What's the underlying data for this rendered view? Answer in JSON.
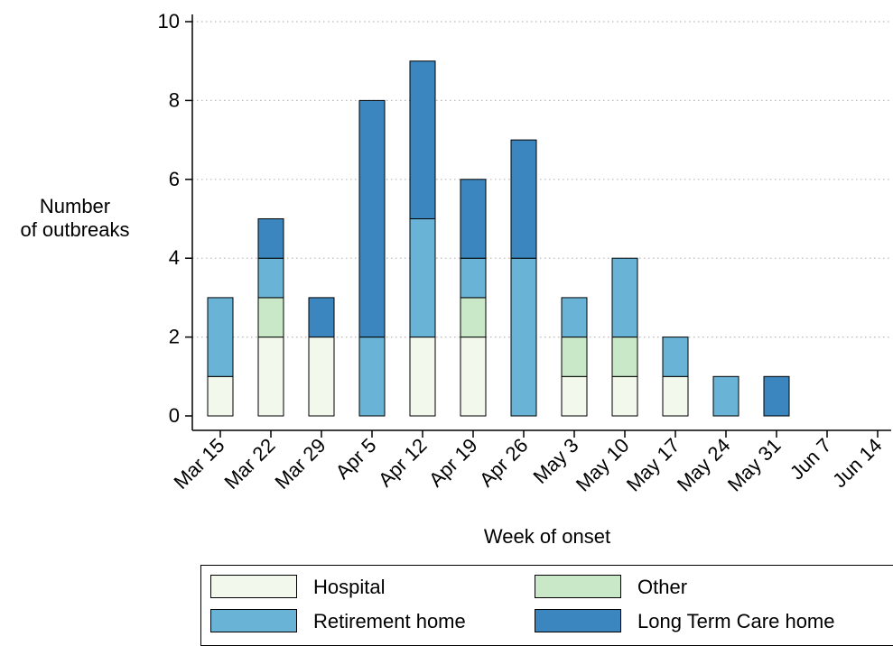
{
  "chart_data": {
    "type": "bar",
    "stacked": true,
    "title": "",
    "xlabel": "Week of onset",
    "ylabel_lines": [
      "Number",
      "of outbreaks"
    ],
    "ylim": [
      0,
      10
    ],
    "yticks": [
      0,
      2,
      4,
      6,
      8,
      10
    ],
    "grid": true,
    "categories": [
      "Mar 15",
      "Mar 22",
      "Mar 29",
      "Apr 5",
      "Apr 12",
      "Apr 19",
      "Apr 26",
      "May 3",
      "May 10",
      "May 17",
      "May 24",
      "May 31",
      "Jun 7",
      "Jun 14"
    ],
    "series": [
      {
        "name": "Hospital",
        "color": "#f2f8ec",
        "values": [
          1,
          2,
          2,
          0,
          2,
          2,
          0,
          1,
          1,
          1,
          0,
          0,
          0,
          0
        ]
      },
      {
        "name": "Other",
        "color": "#c9e8c8",
        "values": [
          0,
          1,
          0,
          0,
          0,
          1,
          0,
          1,
          1,
          0,
          0,
          0,
          0,
          0
        ]
      },
      {
        "name": "Retirement home",
        "color": "#69b3d6",
        "values": [
          2,
          1,
          0,
          2,
          3,
          1,
          4,
          1,
          2,
          1,
          1,
          0,
          0,
          0
        ]
      },
      {
        "name": "Long Term Care home",
        "color": "#3b86be",
        "values": [
          0,
          1,
          1,
          6,
          4,
          2,
          3,
          0,
          0,
          0,
          0,
          1,
          0,
          0
        ]
      }
    ],
    "legend": {
      "placement": "bottom",
      "entries": [
        "Hospital",
        "Other",
        "Retirement home",
        "Long Term Care home"
      ]
    }
  }
}
